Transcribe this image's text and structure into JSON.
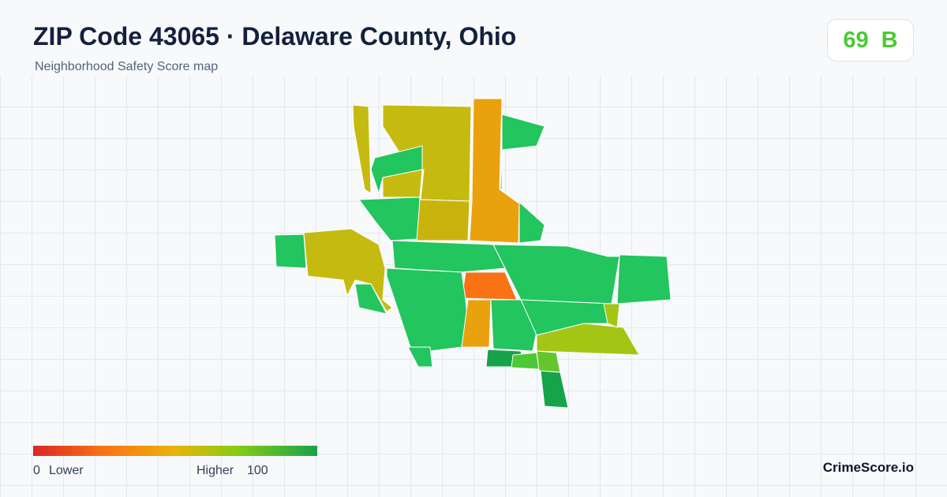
{
  "header": {
    "title": "ZIP Code 43065 · Delaware County, Ohio",
    "subtitle": "Neighborhood Safety Score map"
  },
  "score": {
    "value": 69,
    "grade": "B"
  },
  "legend": {
    "min": 0,
    "min_label": "Lower",
    "max_label": "Higher",
    "max": 100
  },
  "brand": "CrimeScore.io"
}
